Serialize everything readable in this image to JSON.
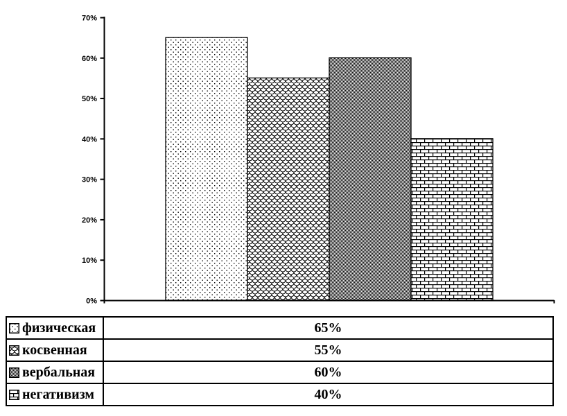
{
  "chart_data": {
    "type": "bar",
    "categories": [
      "физическая",
      "косвенная",
      "вербальная",
      "негативизм"
    ],
    "values": [
      65,
      55,
      60,
      40
    ],
    "value_labels": [
      "65%",
      "55%",
      "60%",
      "40%"
    ],
    "patterns": [
      "dots",
      "scales",
      "checker",
      "brick"
    ],
    "title": "",
    "xlabel": "",
    "ylabel": "",
    "ylim": [
      0,
      70
    ],
    "ytick_step": 10,
    "ytick_labels": [
      "0%",
      "10%",
      "20%",
      "30%",
      "40%",
      "50%",
      "60%",
      "70%"
    ],
    "grid": false,
    "legend_position": "bottom-table",
    "colors": {
      "foreground": "#000000",
      "background": "#ffffff"
    }
  }
}
